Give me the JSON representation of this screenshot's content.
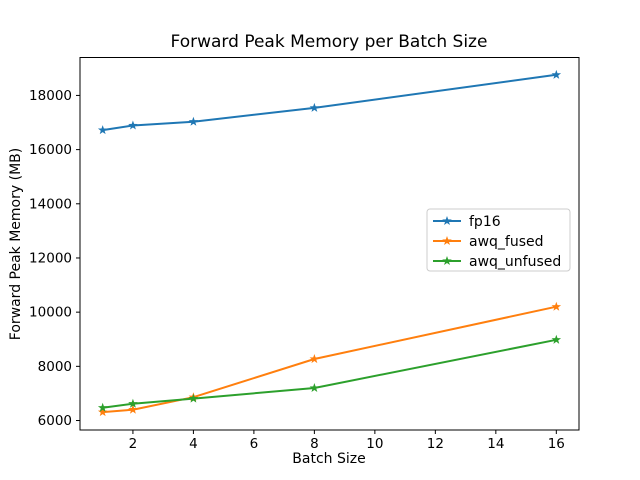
{
  "chart_data": {
    "type": "line",
    "title": "Forward Peak Memory per Batch Size",
    "xlabel": "Batch Size",
    "ylabel": "Forward Peak Memory (MB)",
    "x": [
      1,
      2,
      4,
      8,
      16
    ],
    "series": [
      {
        "name": "fp16",
        "color": "#1f77b4",
        "values": [
          16720,
          16890,
          17030,
          17540,
          18760
        ]
      },
      {
        "name": "awq_fused",
        "color": "#ff7f0e",
        "values": [
          6310,
          6400,
          6860,
          8270,
          10200
        ]
      },
      {
        "name": "awq_unfused",
        "color": "#2ca02c",
        "values": [
          6470,
          6620,
          6810,
          7200,
          8980
        ]
      }
    ],
    "marker": "star",
    "xticks": [
      2,
      4,
      6,
      8,
      10,
      12,
      14,
      16
    ],
    "yticks": [
      6000,
      8000,
      10000,
      12000,
      14000,
      16000,
      18000
    ],
    "xlim": [
      0.25,
      16.75
    ],
    "ylim": [
      5650,
      19400
    ],
    "grid": false,
    "legend_position": "center right",
    "legend_border_color": "#cccccc",
    "axes_color": "#000000",
    "background_color": "#ffffff"
  }
}
